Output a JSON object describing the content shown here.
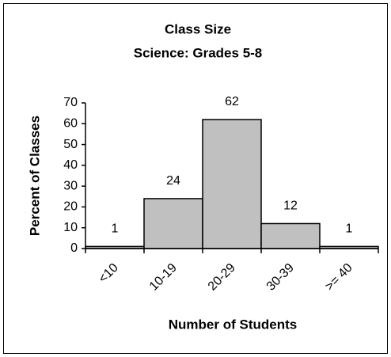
{
  "chart_data": {
    "type": "bar",
    "title": "Class Size",
    "subtitle": "Science: Grades 5-8",
    "x_label": "Number of Students",
    "y_label": "Percent of Classes",
    "categories": [
      "<10",
      "10-19",
      "20-29",
      "30-39",
      ">= 40"
    ],
    "values": [
      1,
      24,
      62,
      12,
      1
    ],
    "color": "#c0c0c0",
    "ylim": [
      0,
      70
    ],
    "yticks": [
      0,
      10,
      20,
      30,
      40,
      50,
      60,
      70
    ],
    "grid": false
  }
}
